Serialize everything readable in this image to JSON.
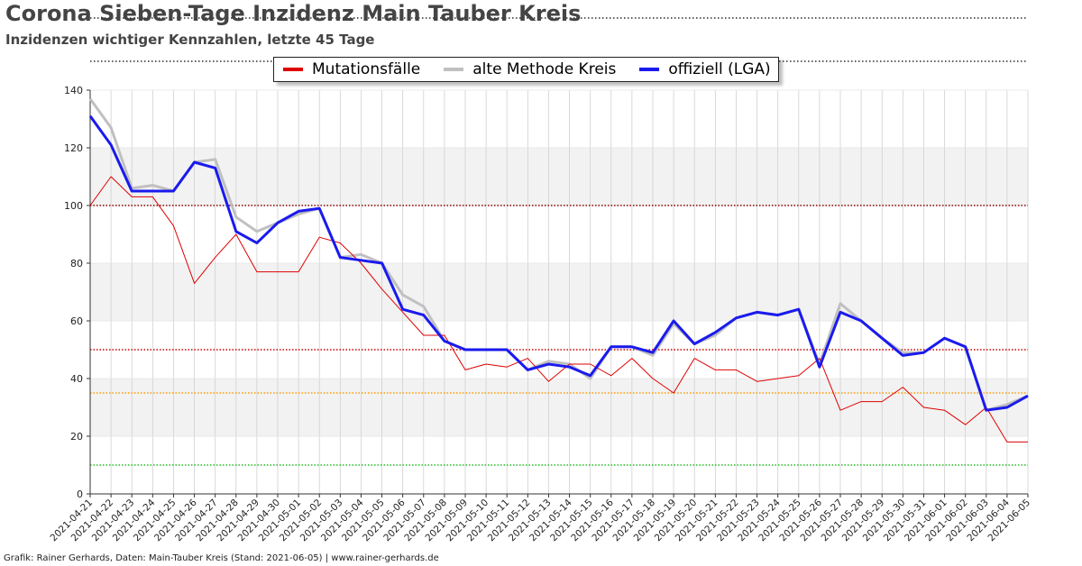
{
  "title": "Corona Sieben-Tage Inzidenz Main Tauber Kreis",
  "subtitle": "Inzidenzen wichtiger Kennzahlen, letzte 45 Tage",
  "footer": "Grafik: Rainer Gerhards, Daten: Main-Tauber Kreis (Stand: 2021-06-05) | www.rainer-gerhards.de",
  "chart_data": {
    "type": "line",
    "xlabel": "",
    "ylabel": "",
    "ylim": [
      0,
      140
    ],
    "yticks": [
      0,
      20,
      40,
      60,
      80,
      100,
      120,
      140
    ],
    "grid": true,
    "legend_position": "top-center",
    "x": [
      "2021-04-21",
      "2021-04-22",
      "2021-04-23",
      "2021-04-24",
      "2021-04-25",
      "2021-04-26",
      "2021-04-27",
      "2021-04-28",
      "2021-04-29",
      "2021-04-30",
      "2021-05-01",
      "2021-05-02",
      "2021-05-03",
      "2021-05-04",
      "2021-05-05",
      "2021-05-06",
      "2021-05-07",
      "2021-05-08",
      "2021-05-09",
      "2021-05-10",
      "2021-05-11",
      "2021-05-12",
      "2021-05-13",
      "2021-05-14",
      "2021-05-15",
      "2021-05-16",
      "2021-05-17",
      "2021-05-18",
      "2021-05-19",
      "2021-05-20",
      "2021-05-21",
      "2021-05-22",
      "2021-05-23",
      "2021-05-24",
      "2021-05-25",
      "2021-05-26",
      "2021-05-27",
      "2021-05-28",
      "2021-05-29",
      "2021-05-30",
      "2021-05-31",
      "2021-06-01",
      "2021-06-02",
      "2021-06-03",
      "2021-06-04",
      "2021-06-05"
    ],
    "series": [
      {
        "name": "alte Methode Kreis",
        "color": "#c0c0c0",
        "width": 3,
        "values": [
          137,
          127,
          106,
          107,
          105,
          115,
          116,
          96,
          91,
          94,
          97,
          99,
          82,
          83,
          80,
          69,
          65,
          53,
          50,
          50,
          50,
          43,
          46,
          45,
          40,
          51,
          51,
          48,
          59,
          52,
          55,
          61,
          63,
          62,
          64,
          45,
          66,
          60,
          54,
          49,
          49,
          54,
          51,
          29,
          31,
          34
        ]
      },
      {
        "name": "Mutationsfälle",
        "color": "#e00000",
        "width": 1,
        "values": [
          100,
          110,
          103,
          103,
          93,
          73,
          82,
          90,
          77,
          77,
          77,
          89,
          87,
          80,
          71,
          63,
          55,
          55,
          43,
          45,
          44,
          47,
          39,
          45,
          45,
          41,
          47,
          40,
          35,
          47,
          43,
          43,
          39,
          40,
          41,
          47,
          29,
          32,
          32,
          37,
          30,
          29,
          24,
          30,
          18,
          18
        ]
      },
      {
        "name": "offiziell (LGA)",
        "color": "#1a1aee",
        "width": 3,
        "values": [
          131,
          121,
          105,
          105,
          105,
          115,
          113,
          91,
          87,
          94,
          98,
          99,
          82,
          81,
          80,
          64,
          62,
          53,
          50,
          50,
          50,
          43,
          45,
          44,
          41,
          51,
          51,
          49,
          60,
          52,
          56,
          61,
          63,
          62,
          64,
          44,
          63,
          60,
          54,
          48,
          49,
          54,
          51,
          29,
          30,
          34
        ]
      }
    ],
    "legend_order": [
      "Mutationsfälle",
      "alte Methode Kreis",
      "offiziell (LGA)"
    ],
    "reference_lines": [
      {
        "value": 100,
        "color": "#8b0000"
      },
      {
        "value": 50,
        "color": "#cc0000"
      },
      {
        "value": 35,
        "color": "#ff9900"
      },
      {
        "value": 10,
        "color": "#22bb22"
      }
    ],
    "shaded_bands": [
      [
        20,
        40
      ],
      [
        60,
        80
      ],
      [
        100,
        120
      ]
    ],
    "band_color": "#f2f2f2"
  }
}
